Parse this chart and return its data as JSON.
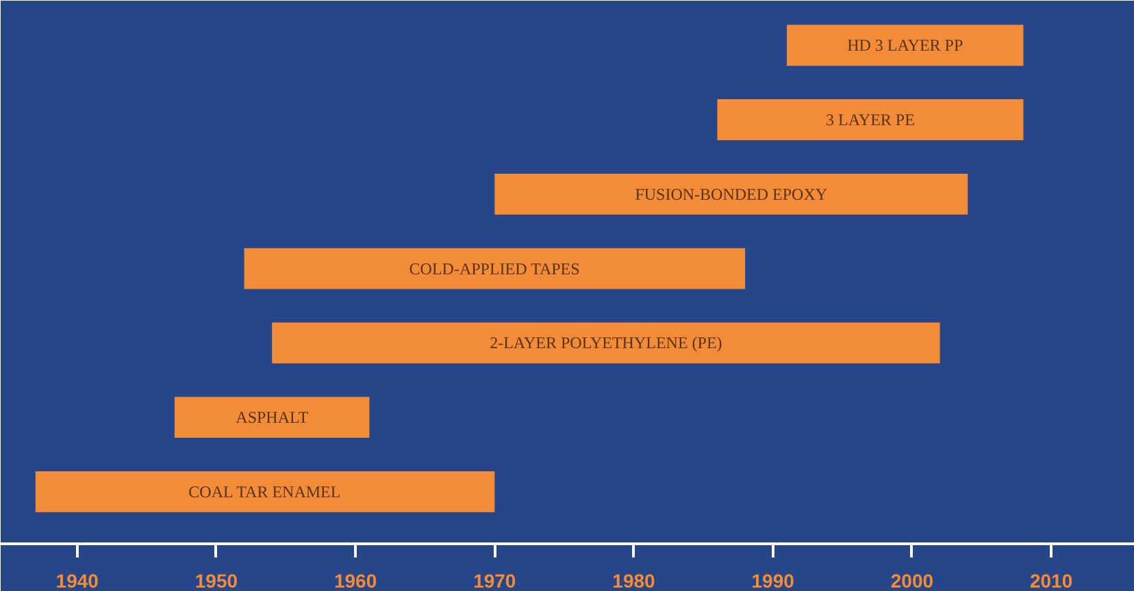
{
  "chart_data": {
    "type": "bar",
    "orientation": "horizontal",
    "categories": [
      "HD 3 LAYER PP",
      "3 LAYER PE",
      "FUSION-BONDED EPOXY",
      "COLD-APPLIED TAPES",
      "2-LAYER POLYETHYLENE (PE)",
      "ASPHALT",
      "COAL TAR ENAMEL"
    ],
    "base": [
      1991,
      1986,
      1970,
      1952,
      1954,
      1947,
      1937
    ],
    "values": [
      17,
      22,
      34,
      36,
      48,
      14,
      33
    ],
    "color": "#f28c38",
    "xlim": [
      1934.5,
      2016
    ],
    "xticks": [
      1940,
      1950,
      1960,
      1970,
      1980,
      1990,
      2000,
      2010
    ],
    "grid": false
  }
}
